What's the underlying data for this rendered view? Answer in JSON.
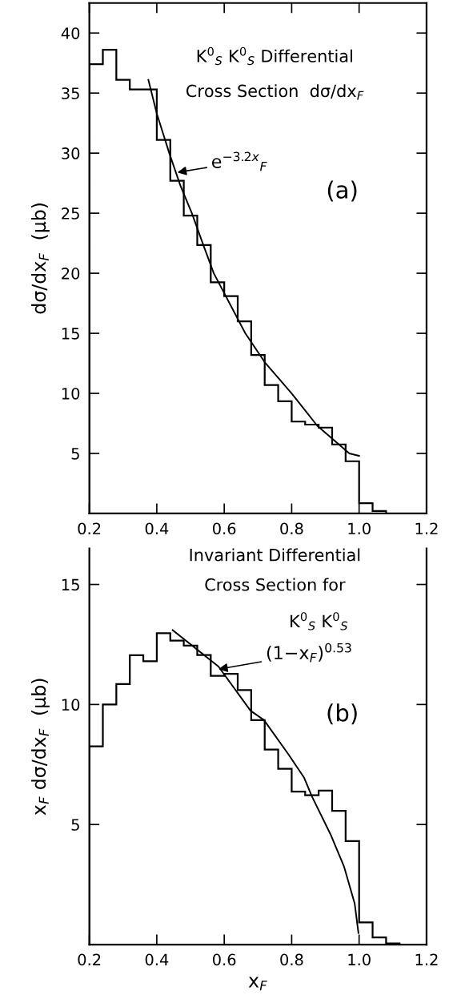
{
  "chart_data": [
    {
      "type": "histogram",
      "bins": [
        0.2,
        0.24,
        0.28,
        0.32,
        0.36,
        0.4,
        0.44,
        0.48,
        0.52,
        0.56,
        0.6,
        0.64,
        0.68,
        0.72,
        0.76,
        0.8,
        0.84,
        0.88,
        0.92,
        0.96,
        1.0,
        1.04,
        1.08
      ],
      "values": [
        37.4,
        38.6,
        36.1,
        35.3,
        35.3,
        31.1,
        27.7,
        24.8,
        22.35,
        19.25,
        18.1,
        16.0,
        13.2,
        10.7,
        9.35,
        7.65,
        7.4,
        7.15,
        5.75,
        4.35,
        0.85,
        0.2
      ],
      "color": "#000000",
      "series": [
        {
          "type": "line",
          "color": "#000000",
          "x": [
            0.375,
            0.4,
            0.437,
            0.47,
            0.504,
            0.54,
            0.569,
            0.6625,
            0.72,
            0.8,
            0.876,
            0.971,
            1.0
          ],
          "values": [
            36.1,
            33.3,
            30,
            27.3,
            25,
            22.2,
            20,
            15,
            12.6,
            10,
            7.3,
            5,
            4.8
          ]
        }
      ],
      "ylabel": "dσ/dx$_{F}$  (μb)",
      "annotations": [
        "K$^{0}$$_{S}$ K$^{0}$$_{S}$ Differential",
        "Cross Section  dσ/dx$_{F}$",
        {
          "text": "e$^{−3.2x}$$_{F}$",
          "x": 0.461,
          "y": 28.4
        },
        "(a)"
      ],
      "xlim": [
        0.2,
        1.2
      ],
      "xticks": [
        {
          "value": 0.2,
          "label": "0.2"
        },
        {
          "value": 0.4,
          "label": "0.4"
        },
        {
          "value": 0.6,
          "label": "0.6"
        },
        {
          "value": 0.8,
          "label": "0.8"
        },
        {
          "value": 1.0,
          "label": "1.0"
        },
        {
          "value": 1.2,
          "label": "1.2"
        }
      ],
      "ylim": [
        0,
        42.5
      ],
      "yticks": [
        5,
        10,
        15,
        20,
        25,
        30,
        35,
        40
      ],
      "grid": false,
      "legend": false
    },
    {
      "type": "histogram",
      "bins": [
        0.2,
        0.24,
        0.28,
        0.32,
        0.36,
        0.4,
        0.44,
        0.48,
        0.52,
        0.56,
        0.6,
        0.64,
        0.68,
        0.72,
        0.76,
        0.8,
        0.84,
        0.88,
        0.92,
        0.96,
        1.0,
        1.04,
        1.08,
        1.12
      ],
      "values": [
        8.26,
        10.0,
        10.85,
        12.05,
        11.8,
        12.97,
        12.66,
        12.45,
        12.06,
        11.19,
        11.28,
        10.6,
        9.35,
        8.12,
        7.32,
        6.37,
        6.22,
        6.41,
        5.57,
        4.31,
        0.92,
        0.3,
        0.05
      ],
      "color": "#000000",
      "series": [
        {
          "type": "line",
          "color": "#000000",
          "x": [
            0.447,
            0.583,
            0.678,
            0.718,
            0.789,
            0.837,
            0.86,
            0.915,
            0.955,
            0.987,
            0.998
          ],
          "values": [
            13.1,
            11.58,
            9.74,
            9.35,
            7.95,
            6.95,
            6.17,
            4.6,
            3.26,
            1.7,
            0.48
          ]
        }
      ],
      "xlabel": "x$_{F}$",
      "ylabel": "x$_{F}$ dσ/dx$_{F}$  (μb)",
      "annotations": [
        "Invariant Differential",
        "Cross Section for",
        "K$^{0}$$_{S}$ K$^{0}$$_{S}$",
        {
          "text": "(1−x$_{F}$)$^{0.53}$",
          "x": 0.583,
          "y": 11.47
        },
        "(b)"
      ],
      "xlim": [
        0.2,
        1.2
      ],
      "xticks": [
        {
          "value": 0.2,
          "label": "0.2"
        },
        {
          "value": 0.4,
          "label": "0.4"
        },
        {
          "value": 0.6,
          "label": "0.6"
        },
        {
          "value": 0.8,
          "label": "0.8"
        },
        {
          "value": 1.0,
          "label": "1.0"
        },
        {
          "value": 1.2,
          "label": "1.2"
        }
      ],
      "ylim": [
        0,
        16.5
      ],
      "yticks": [
        5,
        10,
        15
      ],
      "grid": false,
      "legend": false
    }
  ]
}
